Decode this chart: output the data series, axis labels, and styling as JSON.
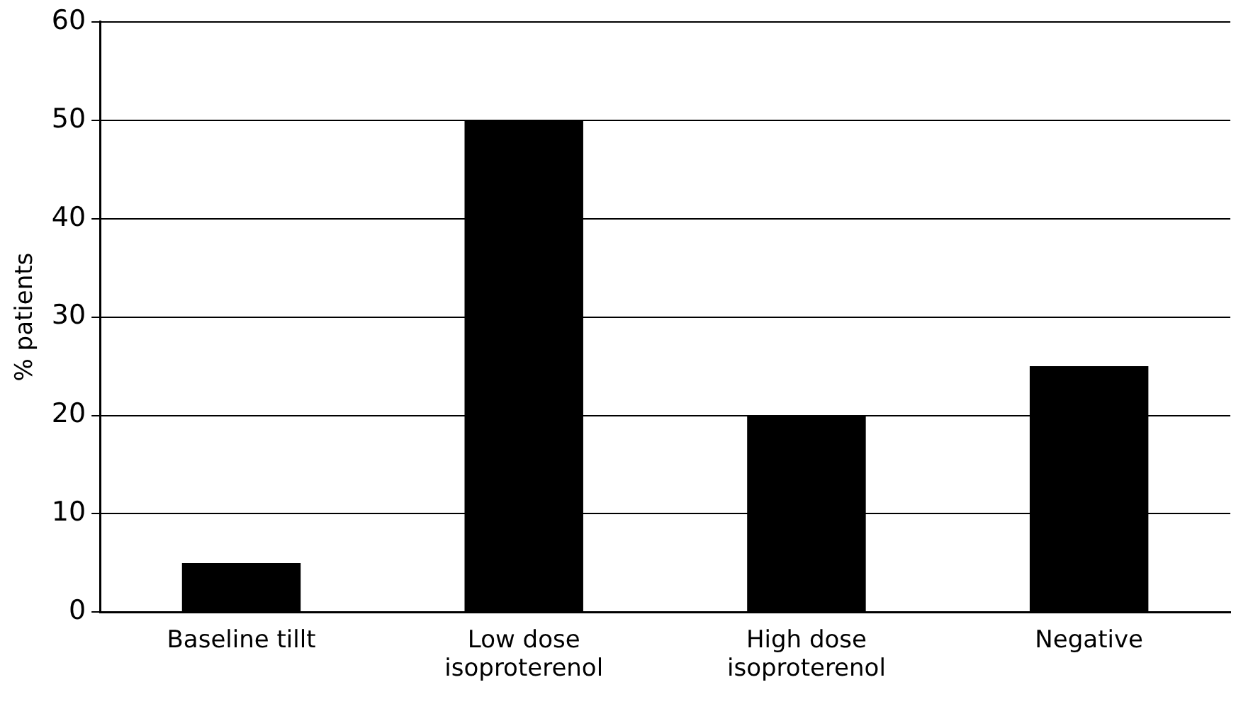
{
  "chart_data": {
    "type": "bar",
    "ylabel": "% patients",
    "categories": [
      "Baseline tillt",
      "Low dose isoproterenol",
      "High dose isoproterenol",
      "Negative"
    ],
    "values": [
      5,
      50,
      20,
      25
    ],
    "color": "#000000",
    "ylim": [
      0,
      60
    ],
    "yticks": [
      0,
      10,
      20,
      30,
      40,
      50,
      60
    ],
    "grid": "y",
    "legend": false
  }
}
